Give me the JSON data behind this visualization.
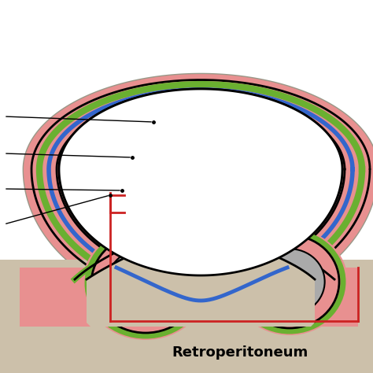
{
  "bg_color": "#ffffff",
  "outer_body_color": "#ccc0aa",
  "outer_body_edge": "#999888",
  "pink_fat_color": "#e89090",
  "green_fascia_color": "#6ab030",
  "blue_peritoneum_color": "#3366cc",
  "red_box_color": "#cc2222",
  "kidney_color": "#aaaaaa",
  "blue_vessel_color": "#3366cc",
  "red_vessel_color": "#cc2222",
  "red_vessel_fill": "#dd7070",
  "retroperitoneum_label": "Retroperitoneum",
  "label_fontsize": 13
}
